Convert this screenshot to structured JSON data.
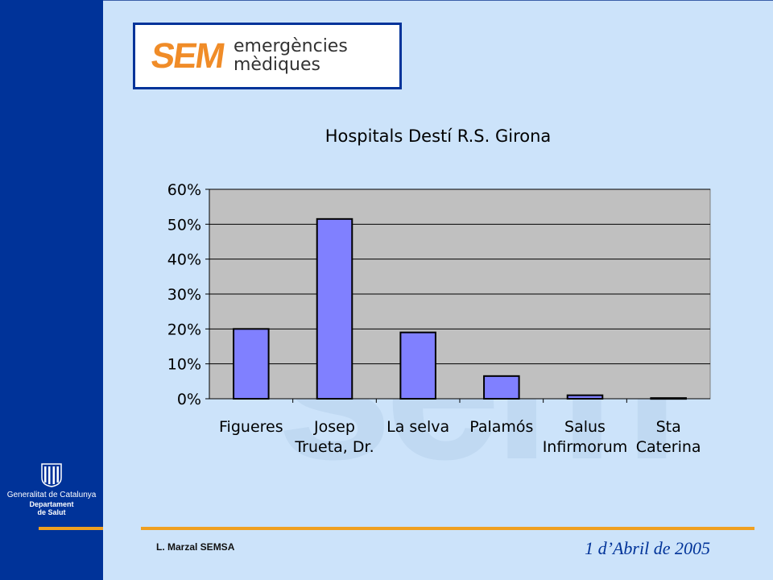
{
  "logo": {
    "mark": "SEM",
    "line1": "emergències",
    "line2": "mèdiques"
  },
  "watermark": "sem",
  "gencat": {
    "line1": "Generalitat de Catalunya",
    "line2": "Departament",
    "line3": "de Salut",
    "icon": "catalan-coat-of-arms-icon"
  },
  "footer": {
    "author": "L. Marzal  SEMSA",
    "date": "1 d’Abril  de 2005"
  },
  "colors": {
    "sidebar": "#003399",
    "background": "#cce3fa",
    "accent_line": "#f0a020",
    "plot_area": "#c0c0c0",
    "bar": "#8080ff",
    "date_text": "#003399"
  },
  "chart_data": {
    "type": "bar",
    "title": "Hospitals Destí R.S. Girona",
    "categories": [
      [
        "Figueres"
      ],
      [
        "Josep",
        "Trueta, Dr."
      ],
      [
        "La selva"
      ],
      [
        "Palamós"
      ],
      [
        "Salus",
        "Infirmorum"
      ],
      [
        "Sta",
        "Caterina"
      ]
    ],
    "values": [
      0.2,
      0.515,
      0.19,
      0.065,
      0.01,
      0.002
    ],
    "ylim": [
      0,
      0.6
    ],
    "yticks": [
      0,
      0.1,
      0.2,
      0.3,
      0.4,
      0.5,
      0.6
    ],
    "ytick_labels": [
      "0%",
      "10%",
      "20%",
      "30%",
      "40%",
      "50%",
      "60%"
    ],
    "xlabel": "",
    "ylabel": "",
    "grid": true,
    "legend": "none"
  }
}
